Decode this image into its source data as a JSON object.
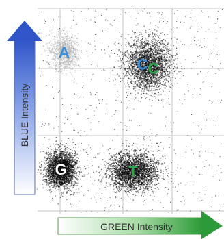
{
  "chart_data": {
    "type": "scatter",
    "title": "",
    "xlabel": "GREEN Intensity",
    "ylabel": "BLUE Intensity",
    "xlim": [
      0,
      1
    ],
    "ylim": [
      0,
      1
    ],
    "grid": true,
    "clusters": [
      {
        "label": "A",
        "x": 0.1,
        "y": 0.76,
        "spread_x": 0.06,
        "spread_y": 0.06,
        "density": "sparse",
        "point_color": "#aaaaaa",
        "label_color": "#3a8fd8"
      },
      {
        "label": "C",
        "x": 0.61,
        "y": 0.7,
        "spread_x": 0.09,
        "spread_y": 0.08,
        "density": "dense",
        "point_color": "#111111",
        "label_color_first": "#3a8fd8",
        "label_color_second": "#2aa84a",
        "label_text": "CC"
      },
      {
        "label": "G",
        "x": 0.08,
        "y": 0.18,
        "spread_x": 0.06,
        "spread_y": 0.06,
        "density": "dense",
        "point_color": "#050505",
        "label_color": "#ffffff"
      },
      {
        "label": "T",
        "x": 0.52,
        "y": 0.17,
        "spread_x": 0.1,
        "spread_y": 0.06,
        "density": "dense",
        "point_color": "#050505",
        "label_color": "#2aa84a"
      }
    ]
  },
  "colors": {
    "blue_arrow": "#2f55c9",
    "green_arrow": "#2c9a38",
    "grid": "#cfcfcf"
  }
}
